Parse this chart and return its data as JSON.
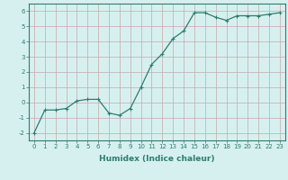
{
  "title": "",
  "xlabel": "Humidex (Indice chaleur)",
  "ylabel": "",
  "x": [
    0,
    1,
    2,
    3,
    4,
    5,
    6,
    7,
    8,
    9,
    10,
    11,
    12,
    13,
    14,
    15,
    16,
    17,
    18,
    19,
    20,
    21,
    22,
    23
  ],
  "y": [
    -2.0,
    -0.5,
    -0.5,
    -0.4,
    0.1,
    0.2,
    0.2,
    -0.7,
    -0.85,
    -0.4,
    1.0,
    2.5,
    3.2,
    4.2,
    4.7,
    5.9,
    5.9,
    5.6,
    5.4,
    5.7,
    5.7,
    5.7,
    5.8,
    5.9
  ],
  "line_color": "#2e7d6e",
  "marker": "+",
  "marker_size": 3.5,
  "bg_color": "#d6f0f0",
  "grid_color_v": "#c8a8a8",
  "grid_color_h": "#c8a8a8",
  "ylim": [
    -2.5,
    6.5
  ],
  "xlim": [
    -0.5,
    23.5
  ],
  "yticks": [
    -2,
    -1,
    0,
    1,
    2,
    3,
    4,
    5,
    6
  ],
  "xticks": [
    0,
    1,
    2,
    3,
    4,
    5,
    6,
    7,
    8,
    9,
    10,
    11,
    12,
    13,
    14,
    15,
    16,
    17,
    18,
    19,
    20,
    21,
    22,
    23
  ],
  "tick_fontsize": 5.0,
  "xlabel_fontsize": 6.5,
  "axis_color": "#2e7d6e",
  "linewidth": 0.9,
  "marker_color": "#2e7d6e"
}
